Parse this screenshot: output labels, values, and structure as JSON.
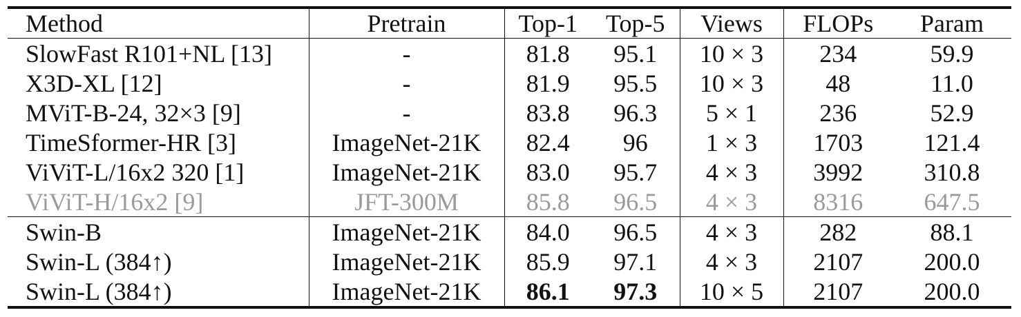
{
  "table": {
    "headers": [
      "Method",
      "Pretrain",
      "Top-1",
      "Top-5",
      "Views",
      "FLOPs",
      "Param"
    ],
    "group_a": [
      {
        "method": "SlowFast R101+NL [13]",
        "pretrain": "-",
        "top1": "81.8",
        "top5": "95.1",
        "views": "10 × 3",
        "flops": "234",
        "param": "59.9"
      },
      {
        "method": "X3D-XL [12]",
        "pretrain": "-",
        "top1": "81.9",
        "top5": "95.5",
        "views": "10 × 3",
        "flops": "48",
        "param": "11.0"
      },
      {
        "method": "MViT-B-24, 32×3 [9]",
        "pretrain": "-",
        "top1": "83.8",
        "top5": "96.3",
        "views": "5 × 1",
        "flops": "236",
        "param": "52.9"
      },
      {
        "method": "TimeSformer-HR [3]",
        "pretrain": "ImageNet-21K",
        "top1": "82.4",
        "top5": "96",
        "views": "1 × 3",
        "flops": "1703",
        "param": "121.4"
      },
      {
        "method": "ViViT-L/16x2 320 [1]",
        "pretrain": "ImageNet-21K",
        "top1": "83.0",
        "top5": "95.7",
        "views": "4 × 3",
        "flops": "3992",
        "param": "310.8"
      },
      {
        "method": "ViViT-H/16x2 [9]",
        "pretrain": "JFT-300M",
        "top1": "85.8",
        "top5": "96.5",
        "views": "4 × 3",
        "flops": "8316",
        "param": "647.5"
      }
    ],
    "group_b": [
      {
        "method": "Swin-B",
        "pretrain": "ImageNet-21K",
        "top1": "84.0",
        "top5": "96.5",
        "views": "4 × 3",
        "flops": "282",
        "param": "88.1"
      },
      {
        "method": "Swin-L (384↑)",
        "pretrain": "ImageNet-21K",
        "top1": "85.9",
        "top5": "97.1",
        "views": "4 × 3",
        "flops": "2107",
        "param": "200.0"
      },
      {
        "method": "Swin-L (384↑)",
        "pretrain": "ImageNet-21K",
        "top1": "86.1",
        "top5": "97.3",
        "views": "10 × 5",
        "flops": "2107",
        "param": "200.0"
      }
    ],
    "styles": {
      "muted_color": "#9a9a9a",
      "text_color": "#111111"
    }
  }
}
